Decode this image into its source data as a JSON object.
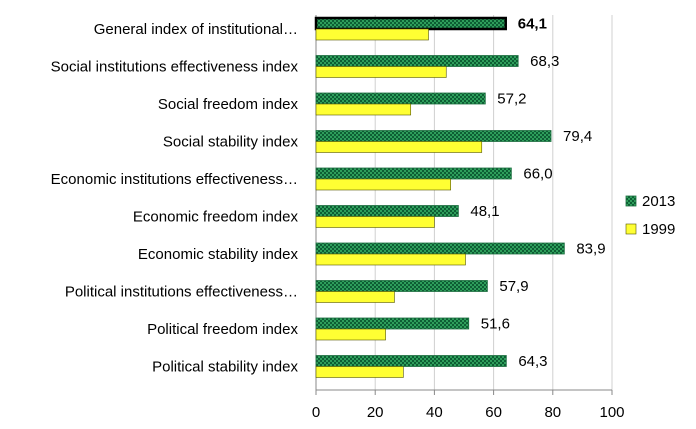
{
  "chart_data": {
    "type": "bar",
    "orientation": "horizontal",
    "categories": [
      "General index of institutional…",
      "Social institutions effectiveness index",
      "Social freedom index",
      "Social stability index",
      "Economic institutions effectiveness…",
      "Economic freedom index",
      "Economic stability index",
      "Political institutions effectiveness…",
      "Political freedom index",
      "Political stability index"
    ],
    "series": [
      {
        "name": "2013",
        "values": [
          64.1,
          68.3,
          57.2,
          79.4,
          66.0,
          48.1,
          83.9,
          57.9,
          51.6,
          64.3
        ],
        "labels": [
          "64,1",
          "68,3",
          "57,2",
          "79,4",
          "66,0",
          "48,1",
          "83,9",
          "57,9",
          "51,6",
          "64,3"
        ],
        "color": "#2e9e5b",
        "pattern": "checkered"
      },
      {
        "name": "1999",
        "values": [
          38.0,
          44.0,
          32.0,
          56.0,
          45.5,
          40.0,
          50.5,
          26.5,
          23.5,
          29.5
        ],
        "color": "#ffff33"
      }
    ],
    "xticks": [
      "0",
      "20",
      "40",
      "60",
      "80",
      "100"
    ],
    "xlim": [
      0,
      100
    ],
    "grid": "vertical",
    "legend": "right",
    "highlight_first_category": true
  }
}
